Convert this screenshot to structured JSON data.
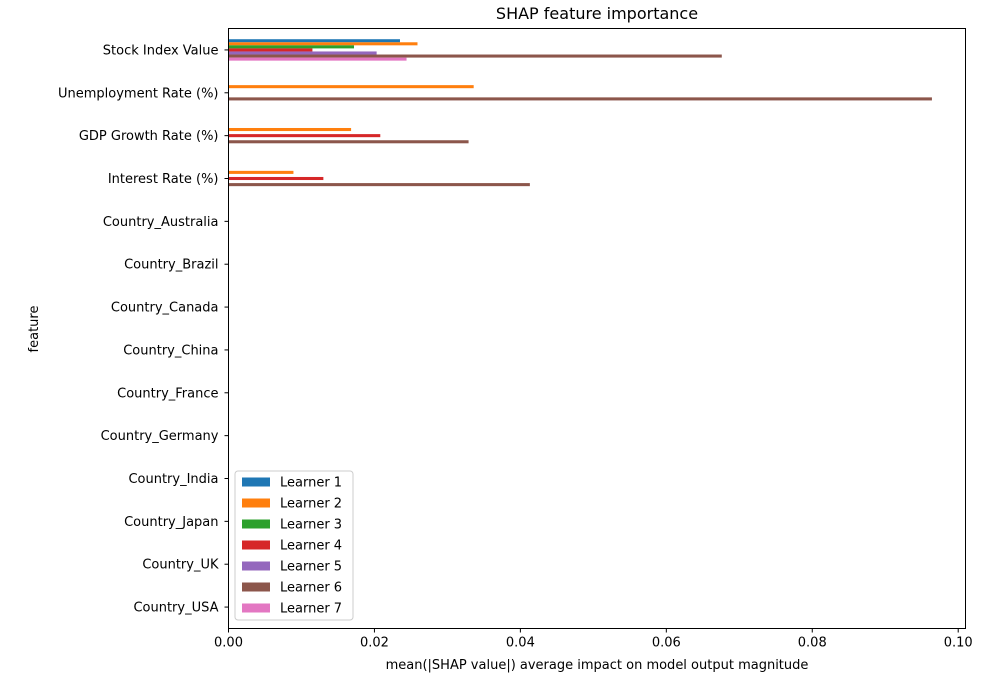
{
  "chart_data": {
    "type": "bar",
    "orientation": "horizontal",
    "title": "SHAP feature importance",
    "xlabel": "mean(|SHAP value|) average impact on model output magnitude",
    "ylabel": "feature",
    "xlim": [
      0,
      0.101
    ],
    "xticks": [
      "0.00",
      "0.02",
      "0.04",
      "0.06",
      "0.08",
      "0.10"
    ],
    "xtick_values": [
      0,
      0.02,
      0.04,
      0.06,
      0.08,
      0.1
    ],
    "grid": false,
    "legend_position": "lower-left",
    "categories": [
      "Stock Index Value",
      "Unemployment Rate (%)",
      "GDP Growth Rate (%)",
      "Interest Rate (%)",
      "Country_Australia",
      "Country_Brazil",
      "Country_Canada",
      "Country_China",
      "Country_France",
      "Country_Germany",
      "Country_India",
      "Country_Japan",
      "Country_UK",
      "Country_USA"
    ],
    "series": [
      {
        "name": "Learner 1",
        "color": "#1f77b4",
        "values": [
          0.0235,
          0,
          0,
          0,
          0,
          0,
          0,
          0,
          0,
          0,
          0,
          0,
          0,
          0
        ]
      },
      {
        "name": "Learner 2",
        "color": "#ff7f0e",
        "values": [
          0.0259,
          0.0336,
          0.0168,
          0.0089,
          0,
          0,
          0,
          0,
          0,
          0,
          0,
          0,
          0,
          0
        ]
      },
      {
        "name": "Learner 3",
        "color": "#2ca02c",
        "values": [
          0.0172,
          0,
          0,
          0,
          0,
          0,
          0,
          0,
          0,
          0,
          0,
          0,
          0,
          0
        ]
      },
      {
        "name": "Learner 4",
        "color": "#d62728",
        "values": [
          0.0115,
          0,
          0.0208,
          0.013,
          0,
          0,
          0,
          0,
          0,
          0,
          0,
          0,
          0,
          0
        ]
      },
      {
        "name": "Learner 5",
        "color": "#9467bd",
        "values": [
          0.0203,
          0,
          0,
          0,
          0,
          0,
          0,
          0,
          0,
          0,
          0,
          0,
          0,
          0
        ]
      },
      {
        "name": "Learner 6",
        "color": "#8c564b",
        "values": [
          0.0676,
          0.0964,
          0.0329,
          0.0413,
          0,
          0,
          0,
          0,
          0,
          0,
          0,
          0,
          0,
          0
        ]
      },
      {
        "name": "Learner 7",
        "color": "#e377c2",
        "values": [
          0.0244,
          0,
          0,
          0,
          0,
          0,
          0,
          0,
          0,
          0,
          0,
          0,
          0,
          0
        ]
      }
    ]
  }
}
